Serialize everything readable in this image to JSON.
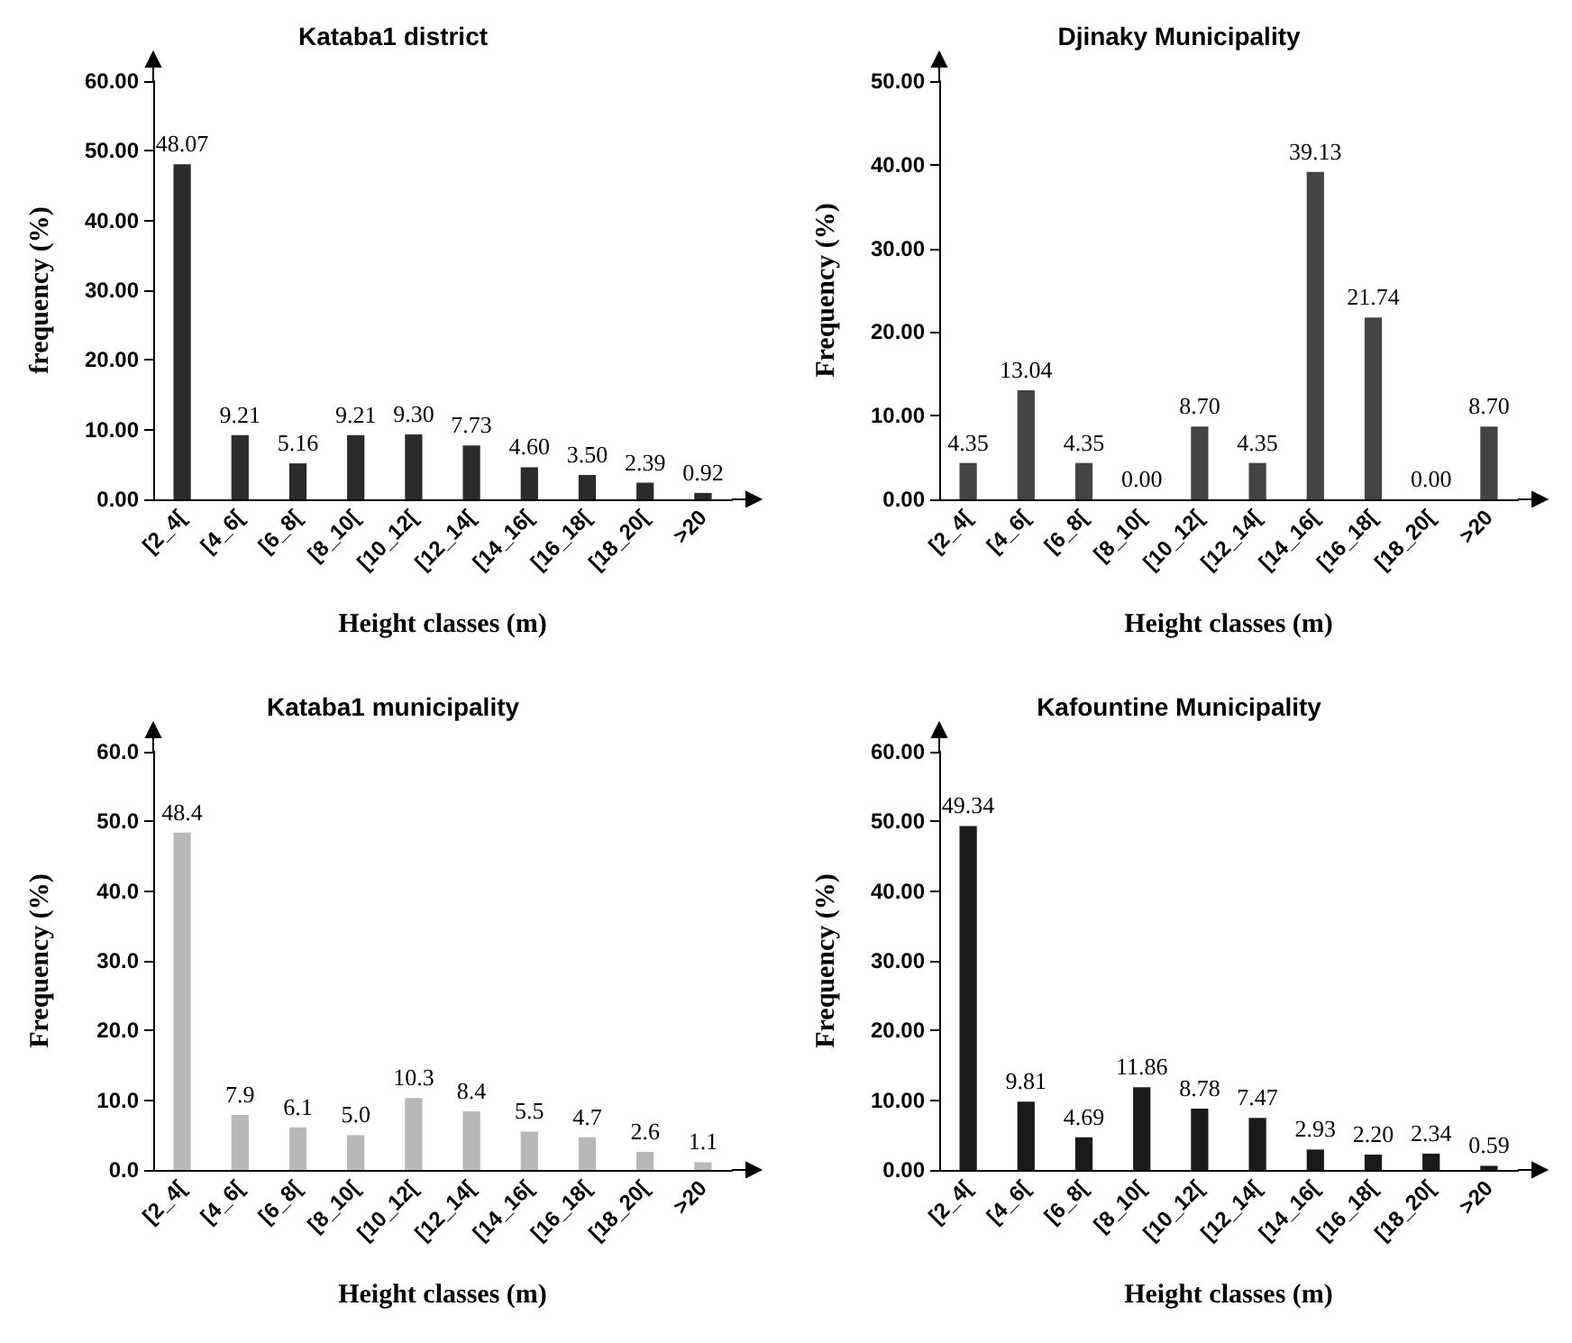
{
  "chart_data": [
    {
      "type": "bar",
      "title": "Kataba1 district",
      "xlabel": "Height classes (m)",
      "ylabel": "frequency (%)",
      "categories": [
        "[2_4[",
        "[4_6[",
        "[6_8[",
        "[8_10[",
        "[10_12[",
        "[12_14[",
        "[14_16[",
        "[16_18[",
        "[18_20[",
        ">20"
      ],
      "values": [
        48.07,
        9.21,
        5.16,
        9.21,
        9.3,
        7.73,
        4.6,
        3.5,
        2.39,
        0.92
      ],
      "color": "#2b2b2b",
      "value_labels": [
        "48.07",
        "9.21",
        "5.16",
        "9.21",
        "9.30",
        "7.73",
        "4.60",
        "3.50",
        "2.39",
        "0.92"
      ],
      "ylim": [
        0,
        60
      ],
      "yticks": [
        {
          "value": 0,
          "label": "0.00"
        },
        {
          "value": 10,
          "label": "10.00"
        },
        {
          "value": 20,
          "label": "20.00"
        },
        {
          "value": 30,
          "label": "30.00"
        },
        {
          "value": 40,
          "label": "40.00"
        },
        {
          "value": 50,
          "label": "50.00"
        },
        {
          "value": 60,
          "label": "60.00"
        }
      ],
      "grid": false
    },
    {
      "type": "bar",
      "title": "Djinaky Municipality",
      "xlabel": "Height classes (m)",
      "ylabel": "Frequency (%)",
      "categories": [
        "[2_4[",
        "[4_6[",
        "[6_8[",
        "[8_10[",
        "[10_12[",
        "[12_14[",
        "[14_16[",
        "[16_18[",
        "[18_20[",
        ">20"
      ],
      "values": [
        4.35,
        13.04,
        4.35,
        0.0,
        8.7,
        4.35,
        39.13,
        21.74,
        0.0,
        8.7
      ],
      "color": "#444444",
      "value_labels": [
        "4.35",
        "13.04",
        "4.35",
        "0.00",
        "8.70",
        "4.35",
        "39.13",
        "21.74",
        "0.00",
        "8.70"
      ],
      "ylim": [
        0,
        50
      ],
      "yticks": [
        {
          "value": 0,
          "label": "0.00"
        },
        {
          "value": 10,
          "label": "10.00"
        },
        {
          "value": 20,
          "label": "20.00"
        },
        {
          "value": 30,
          "label": "30.00"
        },
        {
          "value": 40,
          "label": "40.00"
        },
        {
          "value": 50,
          "label": "50.00"
        }
      ],
      "grid": false
    },
    {
      "type": "bar",
      "title": "Kataba1 municipality",
      "xlabel": "Height classes (m)",
      "ylabel": "Frequency (%)",
      "categories": [
        "[2_4[",
        "[4_6[",
        "[6_8[",
        "[8_10[",
        "[10_12[",
        "[12_14[",
        "[14_16[",
        "[16_18[",
        "[18_20[",
        ">20"
      ],
      "values": [
        48.4,
        7.9,
        6.1,
        5.0,
        10.3,
        8.4,
        5.5,
        4.7,
        2.6,
        1.1
      ],
      "color": "#b8b8b8",
      "value_labels": [
        "48.4",
        "7.9",
        "6.1",
        "5.0",
        "10.3",
        "8.4",
        "5.5",
        "4.7",
        "2.6",
        "1.1"
      ],
      "ylim": [
        0,
        60
      ],
      "yticks": [
        {
          "value": 0,
          "label": "0.0"
        },
        {
          "value": 10,
          "label": "10.0"
        },
        {
          "value": 20,
          "label": "20.0"
        },
        {
          "value": 30,
          "label": "30.0"
        },
        {
          "value": 40,
          "label": "40.0"
        },
        {
          "value": 50,
          "label": "50.0"
        },
        {
          "value": 60,
          "label": "60.0"
        }
      ],
      "grid": false
    },
    {
      "type": "bar",
      "title": "Kafountine Municipality",
      "xlabel": "Height classes (m)",
      "ylabel": "Frequency (%)",
      "categories": [
        "[2_4[",
        "[4_6[",
        "[6_8[",
        "[8_10[",
        "[10_12[",
        "[12_14[",
        "[14_16[",
        "[16_18[",
        "[18_20[",
        ">20"
      ],
      "values": [
        49.34,
        9.81,
        4.69,
        11.86,
        8.78,
        7.47,
        2.93,
        2.2,
        2.34,
        0.59
      ],
      "color": "#1a1a1a",
      "value_labels": [
        "49.34",
        "9.81",
        "4.69",
        "11.86",
        "8.78",
        "7.47",
        "2.93",
        "2.20",
        "2.34",
        "0.59"
      ],
      "ylim": [
        0,
        60
      ],
      "yticks": [
        {
          "value": 0,
          "label": "0.00"
        },
        {
          "value": 10,
          "label": "10.00"
        },
        {
          "value": 20,
          "label": "20.00"
        },
        {
          "value": 30,
          "label": "30.00"
        },
        {
          "value": 40,
          "label": "40.00"
        },
        {
          "value": 50,
          "label": "50.00"
        },
        {
          "value": 60,
          "label": "60.00"
        }
      ],
      "grid": false
    }
  ]
}
